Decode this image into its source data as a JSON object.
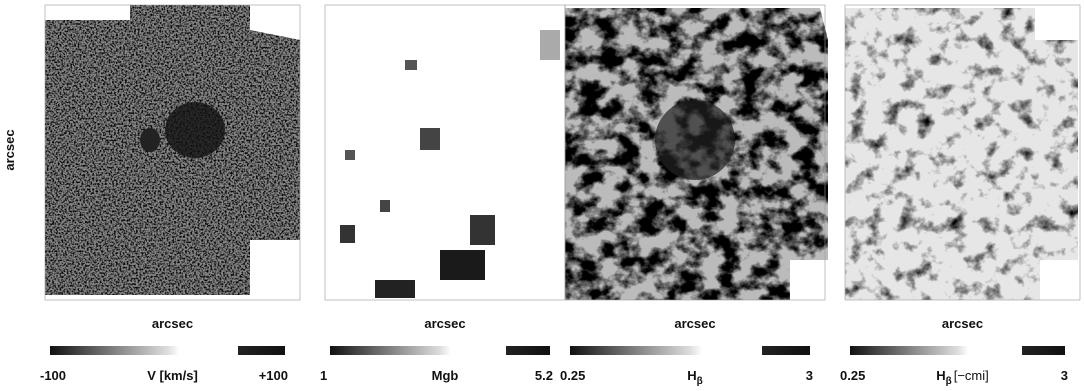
{
  "y_axis_label": "arcsec",
  "panels": [
    {
      "x_axis_label": "arcsec",
      "colorbar": {
        "min_label": "-100",
        "max_label": "+100",
        "label": {
          "main": "V  [km/s]",
          "sub": ""
        }
      }
    },
    {
      "x_axis_label": "arcsec",
      "colorbar": {
        "min_label": "1",
        "max_label": "5.2",
        "label": {
          "main": "Mgb",
          "sub": ""
        }
      }
    },
    {
      "x_axis_label": "arcsec",
      "colorbar": {
        "min_label": "0.25",
        "max_label": "3",
        "label": {
          "main": "H",
          "sub": "β"
        }
      }
    },
    {
      "x_axis_label": "arcsec",
      "colorbar": {
        "min_label": "0.25",
        "max_label": "3",
        "label": {
          "main": "H",
          "sub": "β",
          "suffix": "[−cmi]"
        }
      }
    }
  ]
}
